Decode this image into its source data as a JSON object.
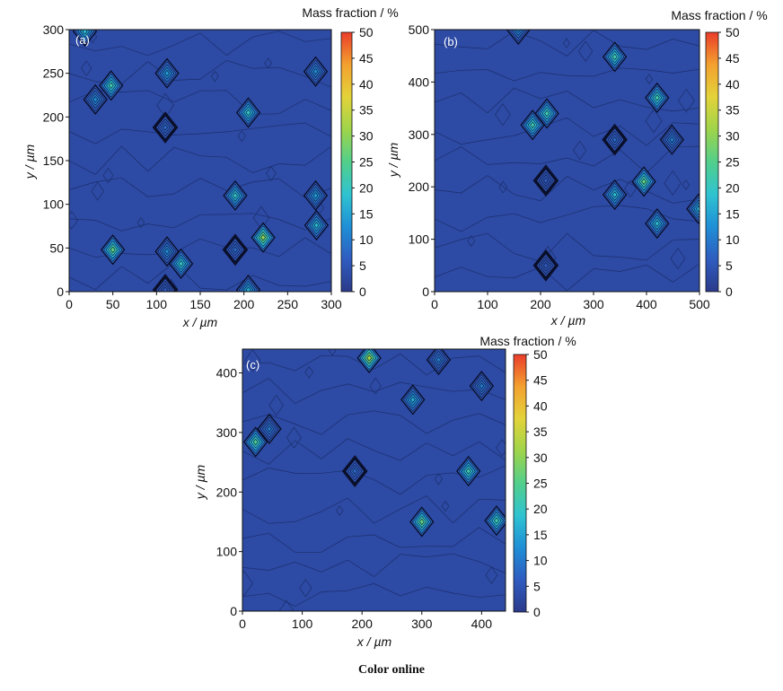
{
  "figure": {
    "caption": "Color online",
    "colormap": [
      "#2b3a8a",
      "#2f5cc0",
      "#1f8fd6",
      "#2fc3d1",
      "#52cf8b",
      "#9ed44a",
      "#e3d33a",
      "#f3a12f",
      "#eb3d2a"
    ]
  },
  "chart_data": [
    {
      "type": "heatmap",
      "panel_label": "(a)",
      "xlabel": "x / µm",
      "ylabel": "y / µm",
      "xlim": [
        0,
        300
      ],
      "ylim": [
        0,
        300
      ],
      "x_ticks": [
        0,
        50,
        100,
        150,
        200,
        250,
        300
      ],
      "y_ticks": [
        0,
        50,
        100,
        150,
        200,
        250,
        300
      ],
      "colorbar": {
        "label": "Mass fraction / %",
        "range": [
          0,
          50
        ],
        "ticks": [
          0,
          5,
          10,
          15,
          20,
          25,
          30,
          35,
          40,
          45,
          50
        ]
      },
      "background_level": 3,
      "hotspots": [
        {
          "x": 18,
          "y": 298,
          "value": 18
        },
        {
          "x": 48,
          "y": 236,
          "value": 22
        },
        {
          "x": 30,
          "y": 220,
          "value": 12
        },
        {
          "x": 112,
          "y": 250,
          "value": 14
        },
        {
          "x": 110,
          "y": 188,
          "value": 8
        },
        {
          "x": 205,
          "y": 205,
          "value": 20
        },
        {
          "x": 282,
          "y": 252,
          "value": 12
        },
        {
          "x": 190,
          "y": 110,
          "value": 20
        },
        {
          "x": 282,
          "y": 110,
          "value": 14
        },
        {
          "x": 283,
          "y": 76,
          "value": 18
        },
        {
          "x": 50,
          "y": 48,
          "value": 26
        },
        {
          "x": 112,
          "y": 46,
          "value": 12
        },
        {
          "x": 128,
          "y": 32,
          "value": 20
        },
        {
          "x": 190,
          "y": 48,
          "value": 8
        },
        {
          "x": 222,
          "y": 62,
          "value": 30
        },
        {
          "x": 205,
          "y": 2,
          "value": 16
        },
        {
          "x": 110,
          "y": 2,
          "value": 6
        }
      ]
    },
    {
      "type": "heatmap",
      "panel_label": "(b)",
      "xlabel": "x / µm",
      "ylabel": "y / µm",
      "xlim": [
        0,
        500
      ],
      "ylim": [
        0,
        500
      ],
      "x_ticks": [
        0,
        100,
        200,
        300,
        400,
        500
      ],
      "y_ticks": [
        0,
        100,
        200,
        300,
        400,
        500
      ],
      "colorbar": {
        "label": "Mass fraction / %",
        "range": [
          0,
          50
        ],
        "ticks": [
          0,
          5,
          10,
          15,
          20,
          25,
          30,
          35,
          40,
          45,
          50
        ]
      },
      "background_level": 3,
      "hotspots": [
        {
          "x": 158,
          "y": 500,
          "value": 12
        },
        {
          "x": 340,
          "y": 448,
          "value": 22
        },
        {
          "x": 420,
          "y": 370,
          "value": 22
        },
        {
          "x": 212,
          "y": 340,
          "value": 22
        },
        {
          "x": 185,
          "y": 318,
          "value": 22
        },
        {
          "x": 340,
          "y": 290,
          "value": 8
        },
        {
          "x": 448,
          "y": 290,
          "value": 10
        },
        {
          "x": 210,
          "y": 212,
          "value": 6
        },
        {
          "x": 395,
          "y": 210,
          "value": 26
        },
        {
          "x": 340,
          "y": 185,
          "value": 18
        },
        {
          "x": 498,
          "y": 158,
          "value": 16
        },
        {
          "x": 420,
          "y": 130,
          "value": 18
        },
        {
          "x": 210,
          "y": 50,
          "value": 6
        }
      ]
    },
    {
      "type": "heatmap",
      "panel_label": "(c)",
      "xlabel": "x / µm",
      "ylabel": "y / µm",
      "xlim": [
        0,
        440
      ],
      "ylim": [
        0,
        440
      ],
      "x_ticks": [
        0,
        100,
        200,
        300,
        400
      ],
      "y_ticks": [
        0,
        100,
        200,
        300,
        400
      ],
      "colorbar": {
        "label": "Mass fraction / %",
        "range": [
          0,
          50
        ],
        "ticks": [
          0,
          5,
          10,
          15,
          20,
          25,
          30,
          35,
          40,
          45,
          50
        ]
      },
      "background_level": 3,
      "hotspots": [
        {
          "x": 212,
          "y": 425,
          "value": 32
        },
        {
          "x": 328,
          "y": 422,
          "value": 10
        },
        {
          "x": 400,
          "y": 378,
          "value": 10
        },
        {
          "x": 285,
          "y": 355,
          "value": 16
        },
        {
          "x": 45,
          "y": 306,
          "value": 10
        },
        {
          "x": 22,
          "y": 284,
          "value": 24
        },
        {
          "x": 188,
          "y": 235,
          "value": 8
        },
        {
          "x": 378,
          "y": 235,
          "value": 22
        },
        {
          "x": 300,
          "y": 150,
          "value": 26
        },
        {
          "x": 425,
          "y": 152,
          "value": 22
        }
      ]
    }
  ]
}
